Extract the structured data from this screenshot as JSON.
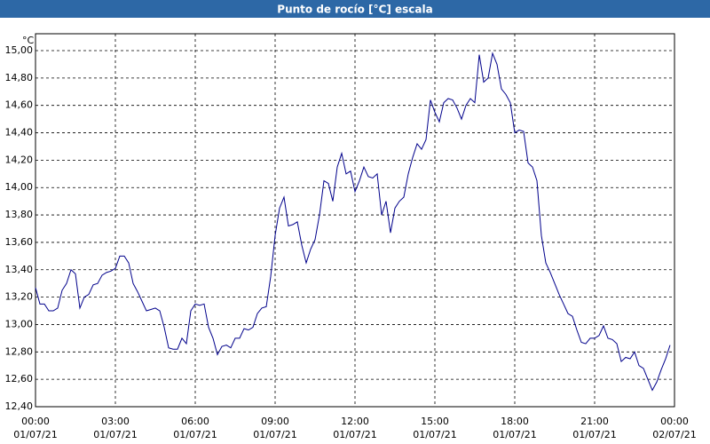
{
  "chart_data": {
    "type": "line",
    "title": "Punto de rocío [°C] escala",
    "y_unit": "°C",
    "color": "#00008b",
    "grid": true,
    "xlim": [
      0,
      1440
    ],
    "xticks": [
      {
        "value": 0,
        "label": [
          "00:00",
          "01/07/21"
        ]
      },
      {
        "value": 180,
        "label": [
          "03:00",
          "01/07/21"
        ]
      },
      {
        "value": 360,
        "label": [
          "06:00",
          "01/07/21"
        ]
      },
      {
        "value": 540,
        "label": [
          "09:00",
          "01/07/21"
        ]
      },
      {
        "value": 720,
        "label": [
          "12:00",
          "01/07/21"
        ]
      },
      {
        "value": 900,
        "label": [
          "15:00",
          "01/07/21"
        ]
      },
      {
        "value": 1080,
        "label": [
          "18:00",
          "01/07/21"
        ]
      },
      {
        "value": 1260,
        "label": [
          "21:00",
          "01/07/21"
        ]
      },
      {
        "value": 1440,
        "label": [
          "00:00",
          "02/07/21"
        ]
      }
    ],
    "ylim": [
      12.4,
      15.0
    ],
    "yticks": [
      {
        "value": 12.4,
        "label": "12,40"
      },
      {
        "value": 12.6,
        "label": "12,60"
      },
      {
        "value": 12.8,
        "label": "12,80"
      },
      {
        "value": 13.0,
        "label": "13,00"
      },
      {
        "value": 13.2,
        "label": "13,20"
      },
      {
        "value": 13.4,
        "label": "13,40"
      },
      {
        "value": 13.6,
        "label": "13,60"
      },
      {
        "value": 13.8,
        "label": "13,80"
      },
      {
        "value": 14.0,
        "label": "14,00"
      },
      {
        "value": 14.2,
        "label": "14,20"
      },
      {
        "value": 14.4,
        "label": "14,40"
      },
      {
        "value": 14.6,
        "label": "14,60"
      },
      {
        "value": 14.8,
        "label": "14,80"
      },
      {
        "value": 15.0,
        "label": "15,00"
      }
    ],
    "x": [
      0,
      10,
      20,
      30,
      40,
      50,
      60,
      70,
      80,
      90,
      100,
      110,
      120,
      130,
      140,
      150,
      160,
      170,
      180,
      190,
      200,
      210,
      220,
      230,
      240,
      250,
      260,
      270,
      280,
      290,
      300,
      310,
      320,
      330,
      340,
      350,
      360,
      370,
      380,
      390,
      400,
      410,
      420,
      430,
      440,
      450,
      460,
      470,
      480,
      490,
      500,
      510,
      520,
      530,
      540,
      550,
      560,
      570,
      580,
      590,
      600,
      610,
      620,
      630,
      640,
      650,
      660,
      670,
      680,
      690,
      700,
      710,
      720,
      730,
      740,
      750,
      760,
      770,
      780,
      790,
      800,
      810,
      820,
      830,
      840,
      850,
      860,
      870,
      880,
      890,
      900,
      910,
      920,
      930,
      940,
      950,
      960,
      970,
      980,
      990,
      1000,
      1010,
      1020,
      1030,
      1040,
      1050,
      1060,
      1070,
      1080,
      1090,
      1100,
      1110,
      1120,
      1130,
      1140,
      1150,
      1160,
      1170,
      1180,
      1190,
      1200,
      1210,
      1220,
      1230,
      1240,
      1250,
      1260,
      1270,
      1280,
      1290,
      1300,
      1310,
      1320,
      1330,
      1340,
      1350,
      1360,
      1370,
      1380,
      1390,
      1400,
      1410,
      1420,
      1430
    ],
    "values": [
      13.27,
      13.15,
      13.15,
      13.1,
      13.1,
      13.12,
      13.25,
      13.3,
      13.4,
      13.37,
      13.12,
      13.2,
      13.22,
      13.29,
      13.3,
      13.36,
      13.38,
      13.39,
      13.41,
      13.5,
      13.5,
      13.45,
      13.3,
      13.24,
      13.17,
      13.1,
      13.11,
      13.12,
      13.1,
      12.98,
      12.83,
      12.82,
      12.82,
      12.9,
      12.86,
      13.1,
      13.15,
      13.14,
      13.15,
      12.98,
      12.9,
      12.78,
      12.84,
      12.85,
      12.83,
      12.9,
      12.9,
      12.97,
      12.96,
      12.98,
      13.08,
      13.12,
      13.13,
      13.35,
      13.65,
      13.85,
      13.93,
      13.72,
      13.73,
      13.75,
      13.58,
      13.45,
      13.55,
      13.62,
      13.8,
      14.05,
      14.03,
      13.9,
      14.15,
      14.25,
      14.1,
      14.12,
      13.97,
      14.05,
      14.15,
      14.08,
      14.07,
      14.1,
      13.8,
      13.9,
      13.67,
      13.85,
      13.9,
      13.93,
      14.1,
      14.22,
      14.32,
      14.28,
      14.35,
      14.64,
      14.55,
      14.48,
      14.62,
      14.65,
      14.64,
      14.58,
      14.5,
      14.6,
      14.65,
      14.62,
      14.97,
      14.77,
      14.8,
      14.98,
      14.9,
      14.72,
      14.68,
      14.62,
      14.4,
      14.42,
      14.41,
      14.18,
      14.15,
      14.05,
      13.65,
      13.45,
      13.38,
      13.3,
      13.22,
      13.15,
      13.08,
      13.06,
      12.96,
      12.87,
      12.86,
      12.9,
      12.9,
      12.92,
      12.99,
      12.9,
      12.89,
      12.86,
      12.73,
      12.76,
      12.75,
      12.8,
      12.7,
      12.68,
      12.6,
      12.52,
      12.58,
      12.67,
      12.75,
      12.85
    ]
  }
}
